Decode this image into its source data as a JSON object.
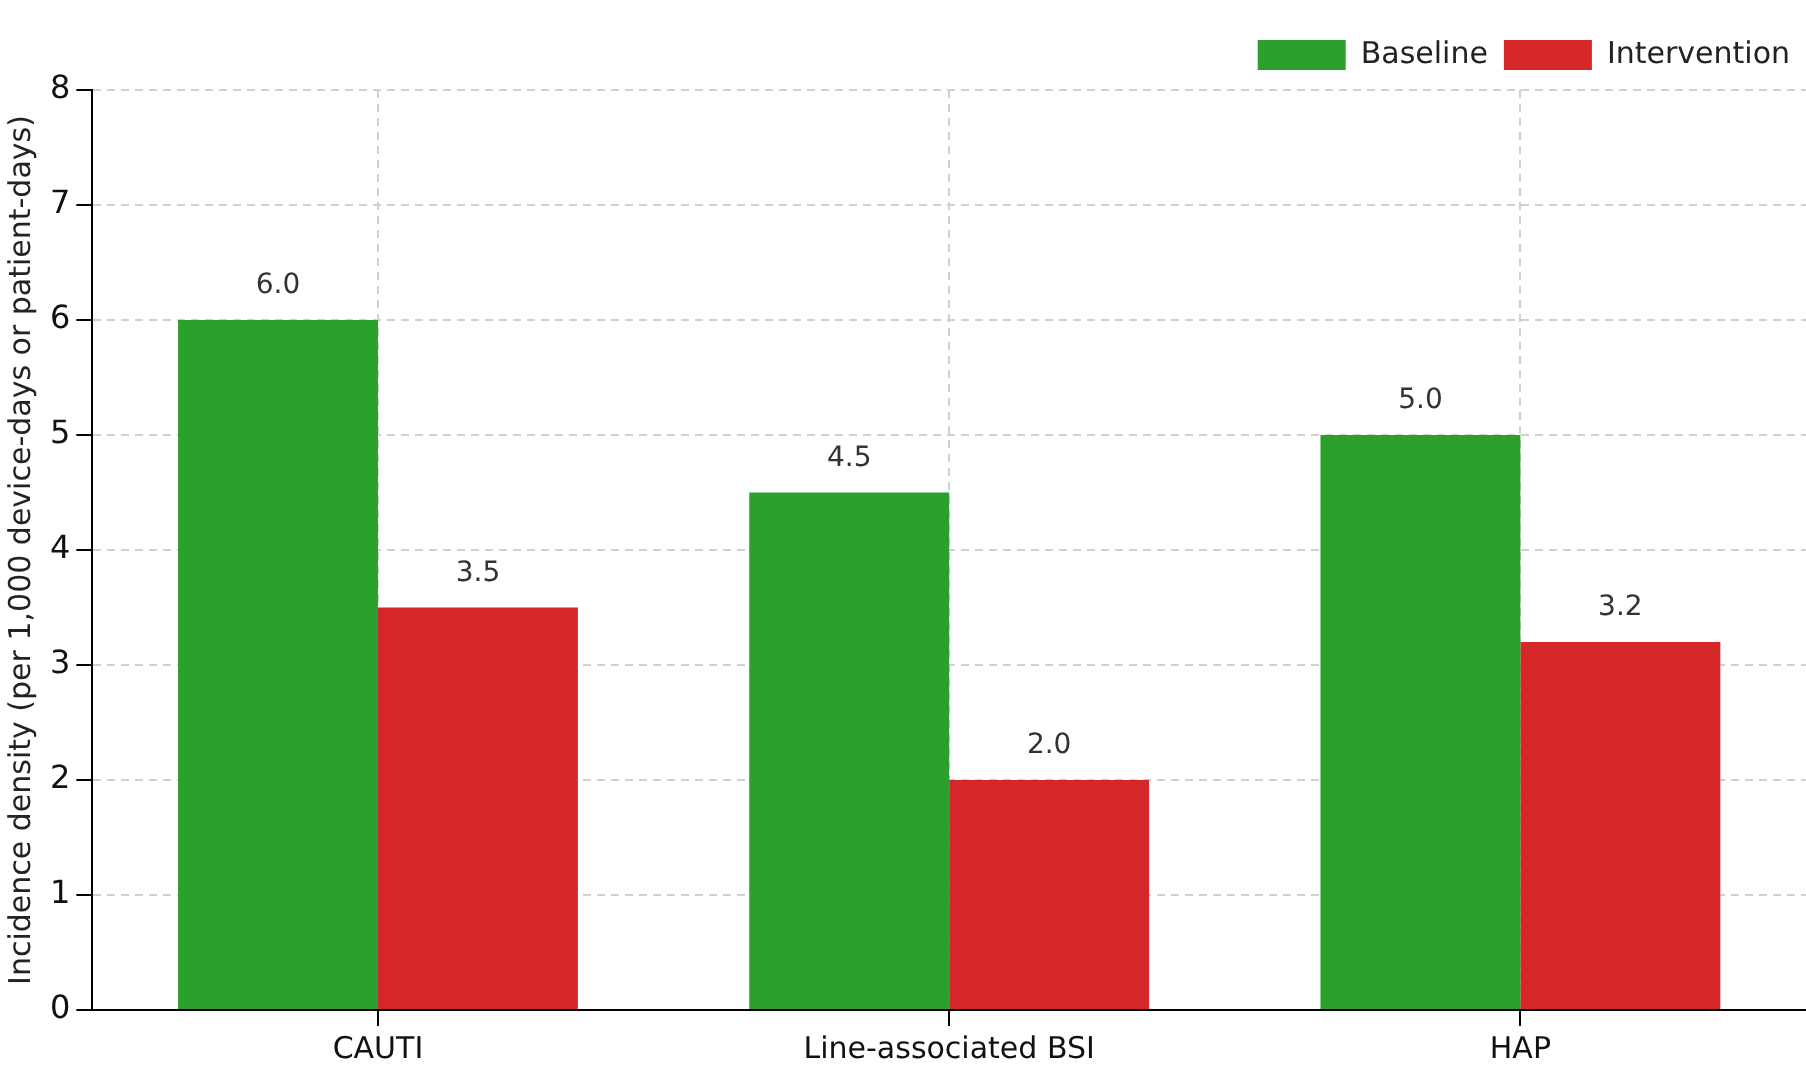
{
  "chart_data": {
    "type": "bar",
    "ylabel": "Incidence density (per 1,000 device-days or patient-days)",
    "categories": [
      "CAUTI",
      "Line-associated BSI",
      "HAP"
    ],
    "series": [
      {
        "name": "Baseline",
        "color": "#2ca02c",
        "values": [
          6.0,
          4.5,
          5.0
        ],
        "value_labels": [
          "6.0",
          "4.5",
          "5.0"
        ]
      },
      {
        "name": "Intervention",
        "color": "#d62728",
        "values": [
          3.5,
          2.0,
          3.2
        ],
        "value_labels": [
          "3.5",
          "2.0",
          "3.2"
        ]
      }
    ],
    "ylim": [
      0,
      8
    ],
    "yticks": [
      0,
      1,
      2,
      3,
      4,
      5,
      6,
      7,
      8
    ],
    "grid": true,
    "legend": "top right"
  }
}
